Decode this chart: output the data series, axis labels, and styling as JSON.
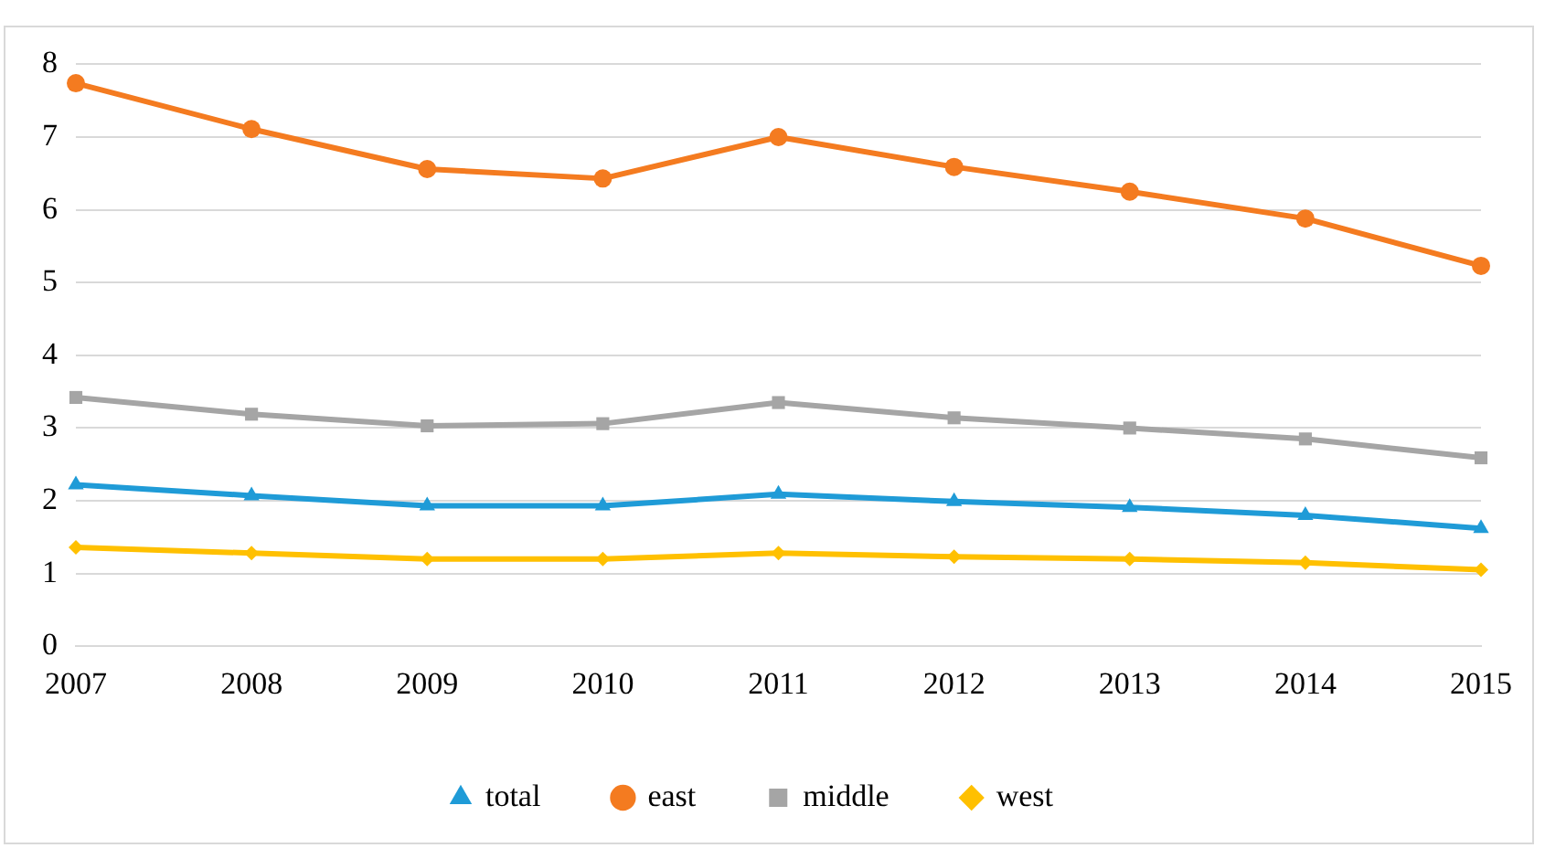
{
  "chart_data": {
    "type": "line",
    "categories": [
      "2007",
      "2008",
      "2009",
      "2010",
      "2011",
      "2012",
      "2013",
      "2014",
      "2015"
    ],
    "series": [
      {
        "name": "total",
        "color": "#1f9bd7",
        "marker": "triangle",
        "values": [
          2.22,
          2.07,
          1.93,
          1.93,
          2.09,
          1.99,
          1.91,
          1.8,
          1.62
        ]
      },
      {
        "name": "east",
        "color": "#f47b20",
        "marker": "circle",
        "values": [
          7.74,
          7.11,
          6.56,
          6.43,
          7.0,
          6.59,
          6.25,
          5.88,
          5.23
        ]
      },
      {
        "name": "middle",
        "color": "#a5a5a5",
        "marker": "square",
        "values": [
          3.42,
          3.19,
          3.03,
          3.06,
          3.35,
          3.14,
          3.0,
          2.85,
          2.59
        ]
      },
      {
        "name": "west",
        "color": "#ffc000",
        "marker": "diamond",
        "values": [
          1.36,
          1.28,
          1.2,
          1.2,
          1.28,
          1.23,
          1.2,
          1.15,
          1.05
        ]
      }
    ],
    "ylim": [
      0,
      8
    ],
    "yticks": [
      0,
      1,
      2,
      3,
      4,
      5,
      6,
      7,
      8
    ],
    "grid": "y",
    "legend": "bottom",
    "line_style": "solid"
  }
}
